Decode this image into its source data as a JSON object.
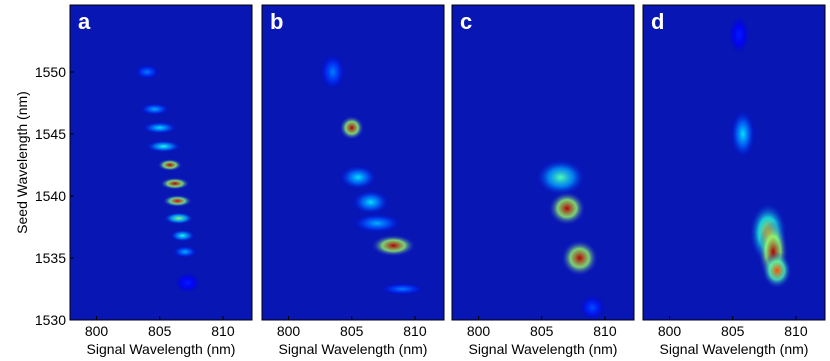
{
  "chart_data": [
    {
      "type": "heatmap",
      "title": "a",
      "xlabel": "Signal Wavelength (nm)",
      "ylabel": "Seed Wavelength (nm)",
      "xlim": [
        797.9,
        812.3
      ],
      "xticks": [
        800,
        805,
        810
      ],
      "ylim": [
        1530,
        1555.4
      ],
      "yticks": [
        1530,
        1535,
        1540,
        1545,
        1550
      ],
      "background": "#0816b4",
      "spots": [
        {
          "x": 804,
          "y": 1550,
          "intensity": 0.25,
          "width": 1,
          "height": 0.6
        },
        {
          "x": 804.6,
          "y": 1547,
          "intensity": 0.3,
          "width": 1.2,
          "height": 0.5
        },
        {
          "x": 805,
          "y": 1545.5,
          "intensity": 0.35,
          "width": 1.4,
          "height": 0.5
        },
        {
          "x": 805.3,
          "y": 1544,
          "intensity": 0.4,
          "width": 1.4,
          "height": 0.5
        },
        {
          "x": 805.8,
          "y": 1542.5,
          "intensity": 0.95,
          "width": 1,
          "height": 0.5
        },
        {
          "x": 806.2,
          "y": 1541,
          "intensity": 0.95,
          "width": 1.2,
          "height": 0.5
        },
        {
          "x": 806.4,
          "y": 1539.6,
          "intensity": 0.9,
          "width": 1.2,
          "height": 0.5
        },
        {
          "x": 806.5,
          "y": 1538.2,
          "intensity": 0.5,
          "width": 1.2,
          "height": 0.5
        },
        {
          "x": 806.8,
          "y": 1536.8,
          "intensity": 0.4,
          "width": 1,
          "height": 0.5
        },
        {
          "x": 807,
          "y": 1535.5,
          "intensity": 0.3,
          "width": 1,
          "height": 0.5
        },
        {
          "x": 807.2,
          "y": 1533,
          "intensity": 0.15,
          "width": 1,
          "height": 0.8
        }
      ]
    },
    {
      "type": "heatmap",
      "title": "b",
      "xlabel": "Signal Wavelength (nm)",
      "xlim": [
        797.9,
        812.3
      ],
      "xticks": [
        800,
        805,
        810
      ],
      "ylim": [
        1530,
        1555.4
      ],
      "background": "#0816b4",
      "spots": [
        {
          "x": 803.5,
          "y": 1550,
          "intensity": 0.25,
          "width": 1,
          "height": 1.5
        },
        {
          "x": 805,
          "y": 1545.5,
          "intensity": 0.95,
          "width": 1,
          "height": 1
        },
        {
          "x": 805.5,
          "y": 1541.5,
          "intensity": 0.35,
          "width": 1.5,
          "height": 1
        },
        {
          "x": 806.5,
          "y": 1539.5,
          "intensity": 0.35,
          "width": 1.5,
          "height": 1
        },
        {
          "x": 807,
          "y": 1537.8,
          "intensity": 0.3,
          "width": 2,
          "height": 0.8
        },
        {
          "x": 808.3,
          "y": 1536,
          "intensity": 0.95,
          "width": 1.8,
          "height": 0.9
        },
        {
          "x": 809,
          "y": 1532.5,
          "intensity": 0.25,
          "width": 1.8,
          "height": 0.5
        }
      ]
    },
    {
      "type": "heatmap",
      "title": "c",
      "xlabel": "Signal Wavelength (nm)",
      "xlim": [
        797.9,
        812.3
      ],
      "xticks": [
        800,
        805,
        810
      ],
      "ylim": [
        1530,
        1555.4
      ],
      "background": "#0816b4",
      "spots": [
        {
          "x": 806.5,
          "y": 1541.5,
          "intensity": 0.45,
          "width": 2,
          "height": 1.5
        },
        {
          "x": 807,
          "y": 1539,
          "intensity": 0.95,
          "width": 1.5,
          "height": 1.4
        },
        {
          "x": 808,
          "y": 1535,
          "intensity": 0.95,
          "width": 1.5,
          "height": 1.5
        },
        {
          "x": 809,
          "y": 1531,
          "intensity": 0.2,
          "width": 1,
          "height": 1
        }
      ]
    },
    {
      "type": "heatmap",
      "title": "d",
      "xlabel": "Signal Wavelength (nm)",
      "xlim": [
        797.9,
        812.3
      ],
      "xticks": [
        800,
        805,
        810
      ],
      "ylim": [
        1530,
        1555.4
      ],
      "background": "#0816b4",
      "spots": [
        {
          "x": 805.5,
          "y": 1553,
          "intensity": 0.15,
          "width": 0.8,
          "height": 1.5
        },
        {
          "x": 805.8,
          "y": 1545,
          "intensity": 0.35,
          "width": 1,
          "height": 2
        },
        {
          "x": 807.8,
          "y": 1537,
          "intensity": 0.7,
          "width": 1.5,
          "height": 2.5
        },
        {
          "x": 808.2,
          "y": 1535.5,
          "intensity": 0.95,
          "width": 1.2,
          "height": 2.5
        },
        {
          "x": 808.5,
          "y": 1534,
          "intensity": 0.8,
          "width": 1.2,
          "height": 1.5
        }
      ]
    }
  ]
}
